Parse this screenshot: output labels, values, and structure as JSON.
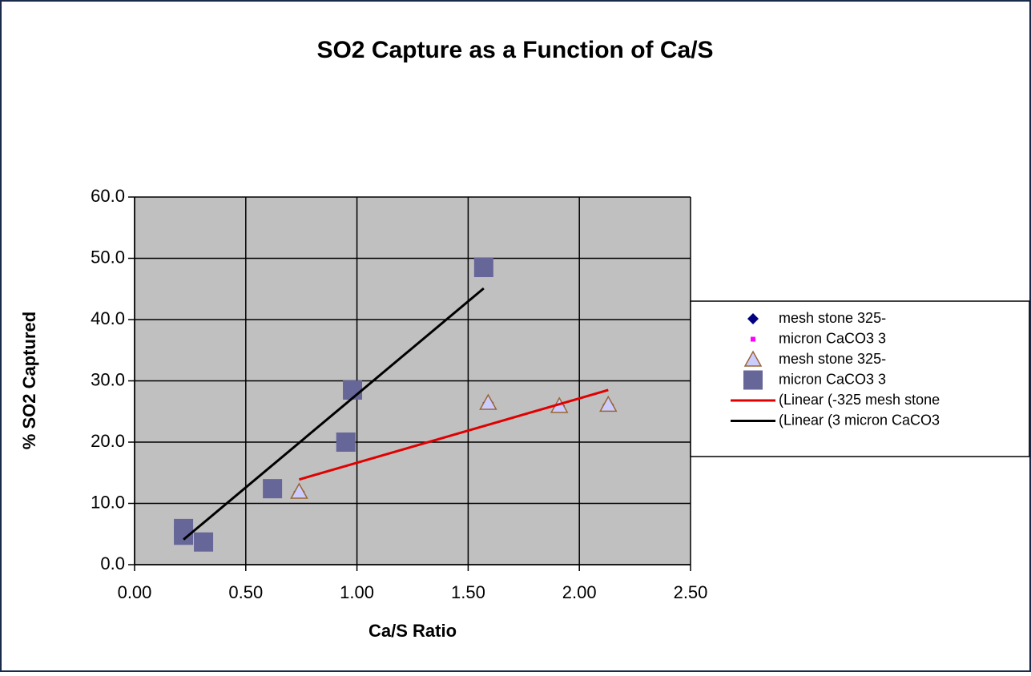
{
  "chart_data": {
    "type": "scatter",
    "title": "SO2 Capture as a Function of Ca/S",
    "x_label": "Ca/S Ratio",
    "y_label": "% SO2 Captured",
    "xlim": [
      0,
      2.5
    ],
    "ylim": [
      0,
      60
    ],
    "xticks": [
      {
        "value": 0,
        "label": "0.00"
      },
      {
        "value": 0.5,
        "label": "0.50"
      },
      {
        "value": 1,
        "label": "1.00"
      },
      {
        "value": 1.5,
        "label": "1.50"
      },
      {
        "value": 2,
        "label": "2.00"
      },
      {
        "value": 2.5,
        "label": "2.50"
      }
    ],
    "yticks": [
      {
        "value": 0,
        "label": "0.0"
      },
      {
        "value": 10,
        "label": "10.0"
      },
      {
        "value": 20,
        "label": "20.0"
      },
      {
        "value": 30,
        "label": "30.0"
      },
      {
        "value": 40,
        "label": "40.0"
      },
      {
        "value": 50,
        "label": "50.0"
      },
      {
        "value": 60,
        "label": "60.0"
      }
    ],
    "grid": true,
    "plot_background": "#c0c0c0",
    "legend_position": "right",
    "series": [
      {
        "name": "mesh stone 325-",
        "marker": "diamond",
        "color": "#000080",
        "x": [
          0.74,
          1.59,
          1.91,
          2.13
        ],
        "values": [
          11.9,
          26.4,
          25.9,
          26.1
        ]
      },
      {
        "name": "micron CaCO3 3",
        "marker": "small-square",
        "color": "#ff00ff",
        "x": [
          0.22,
          0.22,
          0.31,
          0.62,
          0.95,
          0.98,
          1.57
        ],
        "values": [
          5.9,
          4.8,
          3.7,
          12.4,
          20.0,
          28.5,
          48.5
        ]
      },
      {
        "name": "mesh stone 325-",
        "marker": "triangle",
        "color": "#ccccff",
        "x": [
          0.74,
          1.59,
          1.91,
          2.13
        ],
        "values": [
          11.9,
          26.4,
          25.9,
          26.1
        ]
      },
      {
        "name": "micron CaCO3 3",
        "marker": "square",
        "color": "#666699",
        "x": [
          0.22,
          0.22,
          0.31,
          0.62,
          0.95,
          0.98,
          1.57
        ],
        "values": [
          5.9,
          4.8,
          3.7,
          12.4,
          20.0,
          28.5,
          48.5
        ]
      },
      {
        "name": "(Linear (-325 mesh stone",
        "marker": "line",
        "color": "#e00000",
        "x": [
          0.74,
          2.13
        ],
        "values": [
          13.9,
          28.5
        ]
      },
      {
        "name": "(Linear (3 micron CaCO3",
        "marker": "line",
        "color": "#000000",
        "x": [
          0.22,
          1.57
        ],
        "values": [
          4.1,
          45.1
        ]
      }
    ]
  }
}
